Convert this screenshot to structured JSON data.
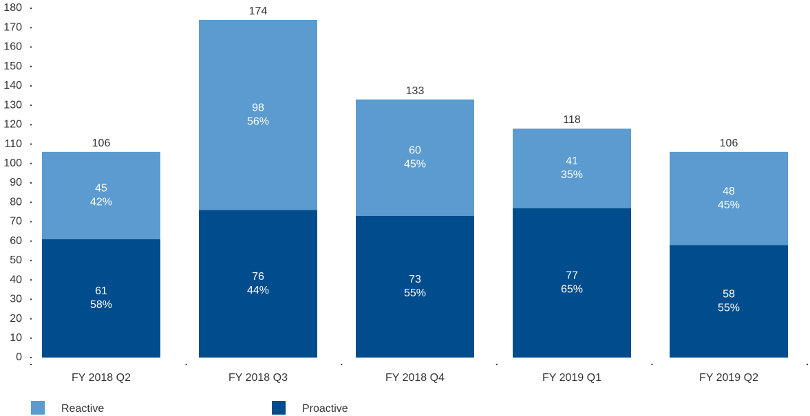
{
  "chart_data": {
    "type": "stacked_bar",
    "categories": [
      "FY 2018 Q2",
      "FY 2018 Q3",
      "FY 2018 Q4",
      "FY 2019 Q1",
      "FY 2019 Q2"
    ],
    "series": [
      {
        "name": "Proactive",
        "color": "#004c8c",
        "values": [
          61,
          76,
          73,
          77,
          58
        ],
        "share_labels": [
          "58%",
          "44%",
          "55%",
          "65%",
          "55%"
        ]
      },
      {
        "name": "Reactive",
        "color": "#5b9bd0",
        "values": [
          45,
          98,
          60,
          41,
          48
        ],
        "share_labels": [
          "42%",
          "56%",
          "45%",
          "35%",
          "45%"
        ]
      }
    ],
    "totals": [
      106,
      174,
      133,
      118,
      106
    ],
    "ylim": [
      0,
      180
    ],
    "yticks": [
      0,
      10,
      20,
      30,
      40,
      50,
      60,
      70,
      80,
      90,
      100,
      110,
      120,
      130,
      140,
      150,
      160,
      170,
      180
    ],
    "legend": "bottom-left"
  }
}
